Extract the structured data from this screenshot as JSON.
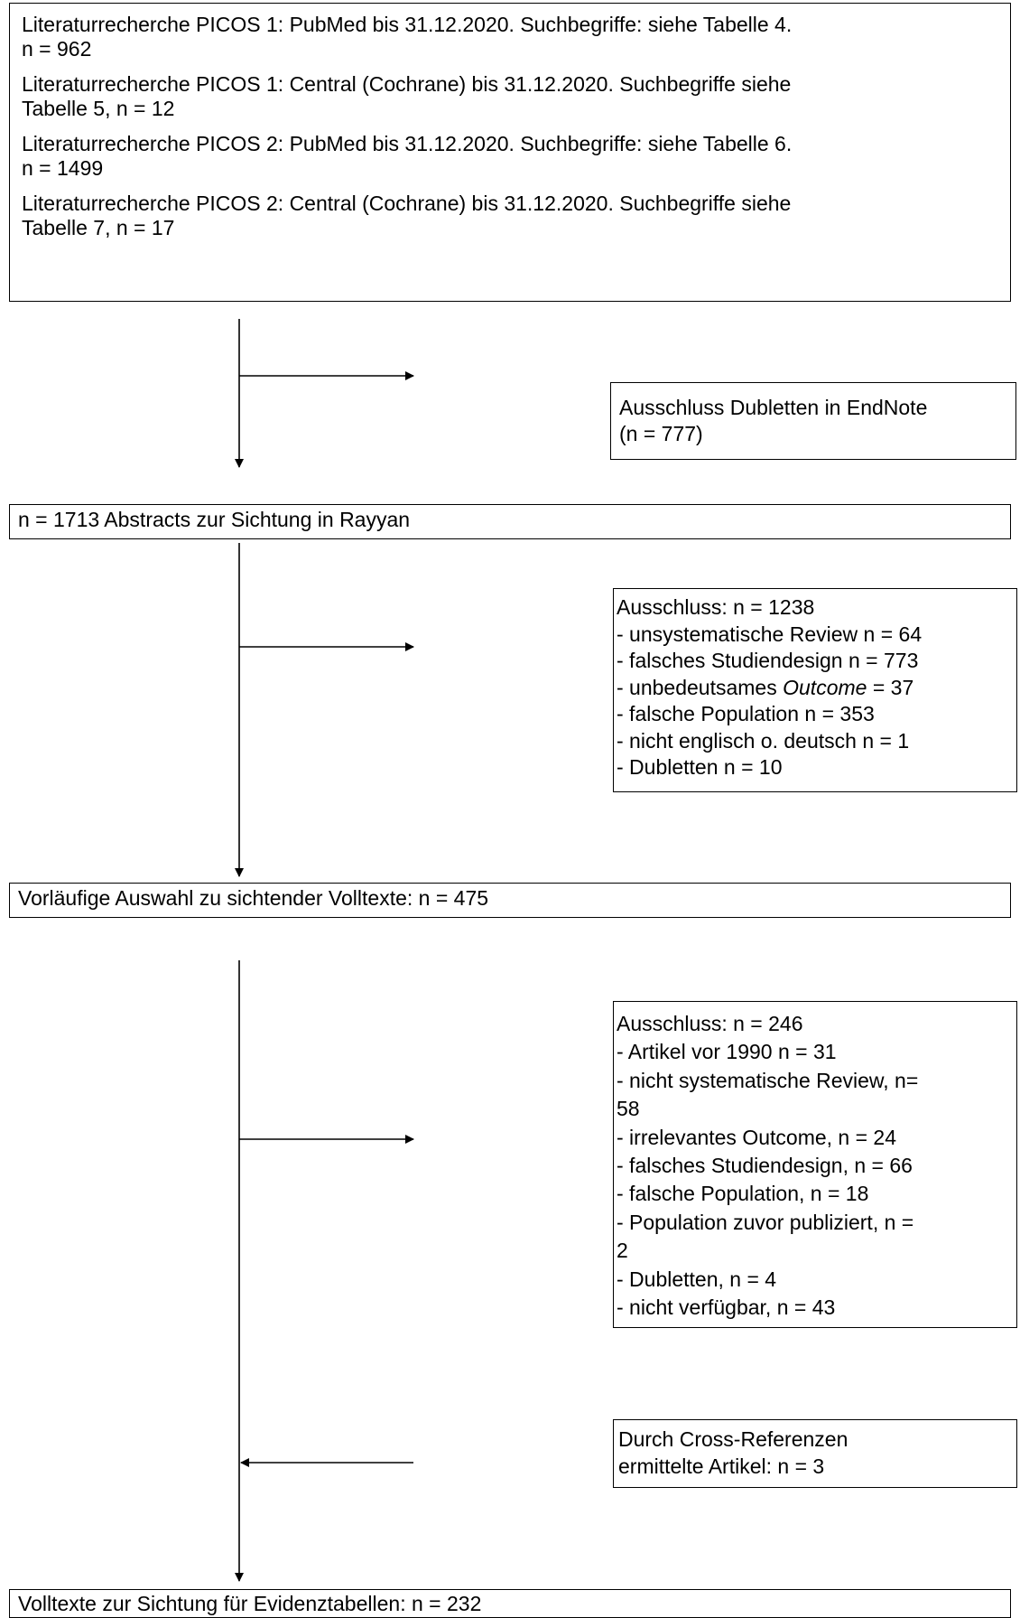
{
  "search_box": {
    "entries": [
      "Literaturrecherche PICOS 1: PubMed bis 31.12.2020. Suchbegriffe: siehe Tabelle 4.",
      "n = 962",
      "Literaturrecherche PICOS 1: Central (Cochrane) bis 31.12.2020. Suchbegriffe siehe",
      "Tabelle 5, n = 12",
      "Literaturrecherche PICOS 2: PubMed bis 31.12.2020. Suchbegriffe: siehe Tabelle 6.",
      "n = 1499",
      "Literaturrecherche PICOS 2: Central (Cochrane) bis 31.12.2020. Suchbegriffe siehe",
      "Tabelle 7, n = 17"
    ]
  },
  "duplicates_box": {
    "line1": "Ausschluss Dubletten in EndNote",
    "line2": "(n = 777)"
  },
  "abstracts_box": {
    "text": "n = 1713 Abstracts zur Sichtung in Rayyan"
  },
  "exclusion_abstracts": {
    "title": "Ausschluss: n = 1238",
    "items": [
      "- unsystematische Review n = 64",
      "- falsches Studiendesign n = 773",
      "- unbedeutsames ",
      "Outcome",
      " = 37",
      "- falsche Population n = 353",
      "- nicht englisch o. deutsch n = 1",
      "- Dubletten n = 10"
    ]
  },
  "preliminary_box": {
    "text": "Vorläufige Auswahl zu sichtender Volltexte: n = 475"
  },
  "exclusion_fulltexts": {
    "title": "Ausschluss: n = 246",
    "lines": [
      "- Artikel vor 1990 n = 31",
      "- nicht systematische Review, n=",
      "58",
      "- irrelevantes Outcome, n = 24",
      "- falsches Studiendesign, n = 66",
      "- falsche Population, n = 18",
      "- Population zuvor publiziert, n =",
      "2",
      "- Dubletten, n = 4",
      "- nicht verfügbar, n = 43"
    ]
  },
  "crossref_box": {
    "line1": "Durch Cross-Referenzen",
    "line2": "ermittelte Artikel: n = 3"
  },
  "final_box": {
    "text": "Volltexte zur Sichtung für Evidenztabellen: n = 232"
  }
}
